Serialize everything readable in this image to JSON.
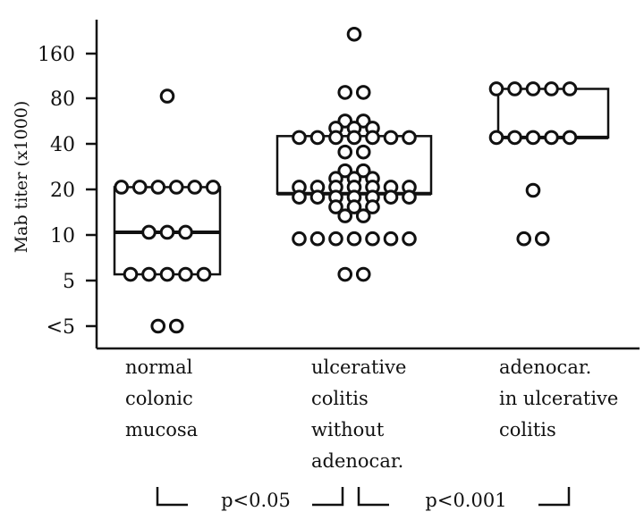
{
  "chart_data": {
    "type": "scatter",
    "title": "",
    "ylabel": "Mab titer (x1000)",
    "xlabel": "",
    "y_ticks": [
      "<5",
      "5",
      "10",
      "20",
      "40",
      "80",
      "160"
    ],
    "y_scale": "log2",
    "categories": [
      {
        "lines": [
          "normal",
          "colonic",
          "mucosa"
        ]
      },
      {
        "lines": [
          "ulcerative",
          "colitis",
          "without",
          "adenocar."
        ]
      },
      {
        "lines": [
          "adenocar.",
          "in ulcerative",
          "colitis"
        ]
      }
    ],
    "groups": [
      {
        "box": {
          "q1": 5.5,
          "median": 10.5,
          "q3": 21
        },
        "points": [
          {
            "y": 85,
            "count": 1
          },
          {
            "y": 21,
            "count": 6
          },
          {
            "y": 10.5,
            "count": 3
          },
          {
            "y": 5.5,
            "count": 5
          },
          {
            "y": "<5",
            "count": 2
          }
        ]
      },
      {
        "box": {
          "q1": 19,
          "median": 19,
          "q3": 46
        },
        "points": [
          {
            "y": 220,
            "count": 1
          },
          {
            "y": 90,
            "count": 2
          },
          {
            "y": 58,
            "count": 2
          },
          {
            "y": 52,
            "count": 3
          },
          {
            "y": 45,
            "count": 7
          },
          {
            "y": 36,
            "count": 2
          },
          {
            "y": 27,
            "count": 2
          },
          {
            "y": 24,
            "count": 3
          },
          {
            "y": 21,
            "count": 7
          },
          {
            "y": 18,
            "count": 7
          },
          {
            "y": 15.5,
            "count": 3
          },
          {
            "y": 13.5,
            "count": 2
          },
          {
            "y": 9.5,
            "count": 7
          },
          {
            "y": 5.5,
            "count": 2
          }
        ]
      },
      {
        "box": {
          "q1": 45,
          "median": 45,
          "q3": 95
        },
        "points": [
          {
            "y": 95,
            "count": 5
          },
          {
            "y": 45,
            "count": 5
          },
          {
            "y": 20,
            "count": 1
          },
          {
            "y": 9.5,
            "count": 2
          }
        ]
      }
    ],
    "comparisons": [
      {
        "label": "p<0.05",
        "from": 0,
        "to": 1
      },
      {
        "label": "p<0.001",
        "from": 1,
        "to": 2
      }
    ]
  }
}
